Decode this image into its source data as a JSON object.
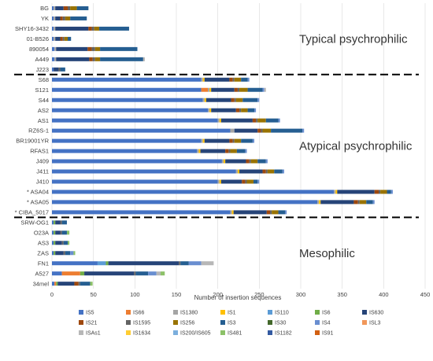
{
  "chart_data": {
    "type": "bar",
    "orientation": "horizontal",
    "stacked": true,
    "xlabel": "Number of insertion sequences",
    "xlim": [
      0,
      450
    ],
    "xticks": [
      0,
      50,
      100,
      150,
      200,
      250,
      300,
      350,
      400,
      450
    ],
    "grid": true,
    "legend_position": "bottom",
    "categories": [
      "BG",
      "YK",
      "SHY16-3432",
      "01-B526",
      "890054",
      "A449",
      "J223",
      "S68",
      "S121",
      "S44",
      "AS2",
      "AS1",
      "RZ6S-1",
      "BR19001YR",
      "RFAS1",
      "J409",
      "J411",
      "J410",
      "ASA04",
      "ASA05",
      "CIBA_5017",
      "SRW-OG1",
      "O23A",
      "AS3",
      "ZAS",
      "FN1",
      "A527",
      "34mel"
    ],
    "marked_categories": [
      "ASA04",
      "ASA05",
      "CIBA_5017"
    ],
    "marker_symbol": "*",
    "groups": [
      {
        "label": "Typical psychrophilic",
        "categories": [
          "BG",
          "YK",
          "SHY16-3432",
          "01-B526",
          "890054",
          "A449",
          "J223"
        ]
      },
      {
        "label": "Atypical psychrophilic",
        "categories": [
          "S68",
          "S121",
          "S44",
          "AS2",
          "AS1",
          "RZ6S-1",
          "BR19001YR",
          "RFAS1",
          "J409",
          "J411",
          "J410",
          "ASA04",
          "ASA05",
          "CIBA_5017"
        ]
      },
      {
        "label": "Mesophilic",
        "categories": [
          "SRW-OG1",
          "O23A",
          "AS3",
          "ZAS",
          "FN1",
          "A527",
          "34mel"
        ]
      }
    ],
    "series": [
      {
        "name": "IS5",
        "color": "#4472C4",
        "values": [
          2,
          2,
          2,
          2,
          3,
          3,
          2,
          180,
          180,
          182,
          188,
          200,
          215,
          180,
          175,
          205,
          222,
          200,
          340,
          320,
          215,
          2,
          2,
          2,
          2,
          55,
          12,
          3
        ]
      },
      {
        "name": "IS66",
        "color": "#ED7D31",
        "values": [
          0,
          0,
          0,
          0,
          0,
          0,
          0,
          0,
          8,
          0,
          0,
          0,
          0,
          0,
          0,
          0,
          0,
          0,
          0,
          0,
          0,
          0,
          0,
          0,
          0,
          0,
          22,
          2
        ]
      },
      {
        "name": "IS1380",
        "color": "#A5A5A5",
        "values": [
          2,
          2,
          2,
          2,
          2,
          2,
          0,
          2,
          2,
          2,
          2,
          2,
          5,
          2,
          2,
          2,
          2,
          2,
          2,
          2,
          2,
          0,
          0,
          0,
          0,
          0,
          0,
          0
        ]
      },
      {
        "name": "IS1",
        "color": "#FFC000",
        "values": [
          0,
          0,
          0,
          0,
          0,
          0,
          0,
          2,
          2,
          2,
          2,
          2,
          0,
          2,
          2,
          2,
          2,
          2,
          2,
          2,
          2,
          0,
          0,
          0,
          0,
          0,
          0,
          0
        ]
      },
      {
        "name": "IS110",
        "color": "#5B9BD5",
        "values": [
          0,
          0,
          0,
          0,
          0,
          0,
          0,
          0,
          0,
          0,
          0,
          0,
          0,
          0,
          0,
          0,
          0,
          0,
          0,
          0,
          0,
          0,
          0,
          0,
          0,
          10,
          0,
          0
        ]
      },
      {
        "name": "IS6",
        "color": "#70AD47",
        "values": [
          0,
          0,
          0,
          0,
          0,
          0,
          0,
          0,
          0,
          0,
          0,
          0,
          0,
          0,
          0,
          0,
          0,
          0,
          0,
          0,
          0,
          2,
          2,
          2,
          2,
          3,
          5,
          2
        ]
      },
      {
        "name": "IS630",
        "color": "#264478",
        "values": [
          10,
          6,
          40,
          6,
          38,
          40,
          6,
          30,
          28,
          30,
          30,
          38,
          28,
          30,
          30,
          25,
          28,
          25,
          45,
          40,
          40,
          6,
          6,
          8,
          10,
          85,
          60,
          20
        ]
      },
      {
        "name": "IS21",
        "color": "#9E480E",
        "values": [
          5,
          3,
          4,
          3,
          5,
          4,
          0,
          4,
          4,
          4,
          4,
          4,
          4,
          4,
          4,
          4,
          4,
          4,
          5,
          5,
          4,
          0,
          0,
          0,
          0,
          0,
          0,
          5
        ]
      },
      {
        "name": "IS1595",
        "color": "#636363",
        "values": [
          3,
          3,
          3,
          2,
          4,
          3,
          2,
          2,
          2,
          2,
          2,
          2,
          2,
          2,
          2,
          2,
          2,
          2,
          2,
          2,
          2,
          2,
          2,
          2,
          2,
          2,
          2,
          2
        ]
      },
      {
        "name": "IS256",
        "color": "#997300",
        "values": [
          8,
          6,
          6,
          4,
          6,
          6,
          0,
          8,
          10,
          8,
          8,
          10,
          10,
          8,
          8,
          8,
          8,
          8,
          8,
          8,
          8,
          0,
          0,
          0,
          0,
          0,
          0,
          0
        ]
      },
      {
        "name": "IS3",
        "color": "#255E91",
        "values": [
          14,
          20,
          36,
          4,
          45,
          52,
          6,
          8,
          18,
          18,
          8,
          15,
          38,
          14,
          10,
          10,
          10,
          5,
          5,
          8,
          8,
          6,
          6,
          5,
          6,
          10,
          15,
          12
        ]
      },
      {
        "name": "IS30",
        "color": "#43682B",
        "values": [
          0,
          0,
          0,
          0,
          0,
          0,
          0,
          0,
          0,
          0,
          0,
          0,
          0,
          0,
          0,
          0,
          0,
          0,
          0,
          0,
          0,
          0,
          0,
          0,
          0,
          0,
          0,
          0
        ]
      },
      {
        "name": "IS4",
        "color": "#698ED0",
        "values": [
          0,
          0,
          0,
          0,
          0,
          0,
          0,
          2,
          2,
          2,
          2,
          2,
          2,
          2,
          2,
          2,
          2,
          2,
          2,
          2,
          2,
          0,
          0,
          0,
          4,
          15,
          10,
          0
        ]
      },
      {
        "name": "ISL3",
        "color": "#F1975A",
        "values": [
          0,
          0,
          0,
          0,
          0,
          0,
          0,
          0,
          0,
          0,
          0,
          0,
          0,
          0,
          0,
          0,
          0,
          0,
          0,
          0,
          0,
          0,
          0,
          0,
          0,
          0,
          0,
          0
        ]
      },
      {
        "name": "ISAs1",
        "color": "#B7B7B7",
        "values": [
          0,
          0,
          0,
          0,
          0,
          2,
          0,
          0,
          2,
          0,
          0,
          0,
          0,
          0,
          0,
          0,
          0,
          0,
          0,
          0,
          0,
          0,
          0,
          0,
          0,
          15,
          5,
          0
        ]
      },
      {
        "name": "IS1634",
        "color": "#FFCD33",
        "values": [
          0,
          0,
          0,
          0,
          0,
          0,
          0,
          0,
          0,
          0,
          0,
          0,
          0,
          0,
          0,
          0,
          0,
          0,
          0,
          0,
          0,
          0,
          0,
          0,
          0,
          0,
          0,
          0
        ]
      },
      {
        "name": "IS200/IS605",
        "color": "#7CAFDD",
        "values": [
          0,
          0,
          0,
          0,
          0,
          0,
          0,
          0,
          0,
          0,
          0,
          0,
          0,
          0,
          0,
          0,
          0,
          0,
          0,
          0,
          0,
          0,
          0,
          0,
          0,
          0,
          0,
          0
        ]
      },
      {
        "name": "IS481",
        "color": "#8CC168",
        "values": [
          0,
          0,
          0,
          0,
          0,
          0,
          0,
          0,
          0,
          0,
          0,
          0,
          0,
          0,
          0,
          0,
          0,
          0,
          0,
          0,
          0,
          0,
          3,
          2,
          2,
          0,
          5,
          3
        ]
      },
      {
        "name": "IS1182",
        "color": "#335AA1",
        "values": [
          0,
          0,
          0,
          0,
          0,
          0,
          0,
          0,
          0,
          0,
          0,
          0,
          0,
          0,
          0,
          0,
          0,
          0,
          0,
          0,
          0,
          0,
          0,
          0,
          0,
          0,
          0,
          0
        ]
      },
      {
        "name": "IS91",
        "color": "#D26012",
        "values": [
          0,
          0,
          0,
          0,
          0,
          0,
          0,
          0,
          0,
          0,
          0,
          0,
          0,
          0,
          0,
          0,
          0,
          0,
          0,
          0,
          0,
          0,
          0,
          0,
          0,
          0,
          0,
          0
        ]
      }
    ]
  }
}
